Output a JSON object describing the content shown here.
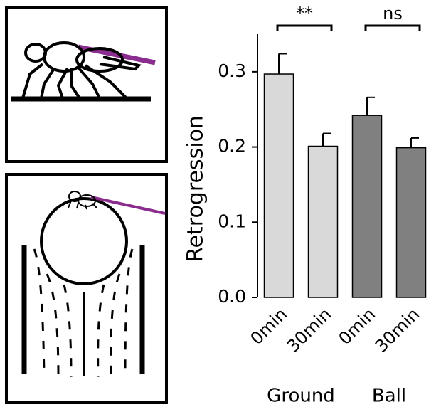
{
  "chart_data": {
    "type": "bar",
    "ylabel": "Retrogression",
    "categories": [
      "0min",
      "30min",
      "0min",
      "30min"
    ],
    "values": [
      0.297,
      0.201,
      0.242,
      0.199
    ],
    "errors": [
      0.027,
      0.017,
      0.024,
      0.013
    ],
    "colors": [
      "#d9d9d9",
      "#d9d9d9",
      "#808080",
      "#808080"
    ],
    "group_labels": [
      "Ground",
      "Ball"
    ],
    "significance": [
      "**",
      "ns"
    ],
    "ylim": [
      0,
      0.35
    ],
    "yticks": [
      {
        "value": 0,
        "label": "0.0"
      },
      0.1,
      0.2,
      0.3
    ]
  }
}
